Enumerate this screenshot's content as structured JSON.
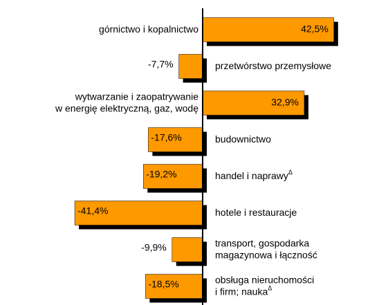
{
  "chart_data": {
    "type": "bar",
    "orientation": "horizontal",
    "categories": [
      [
        "górnictwo i kopalnictwo"
      ],
      [
        "przetwórstwo przemysłowe"
      ],
      [
        "wytwarzanie i zaopatrywanie",
        "w energię elektryczną, gaz, wodę"
      ],
      [
        "budownictwo"
      ],
      [
        "handel i naprawy"
      ],
      [
        "hotele i restauracje"
      ],
      [
        "transport, gospodarka",
        "magazynowa i łączność"
      ],
      [
        "obsługa nieruchomości",
        "i firm; nauka"
      ]
    ],
    "category_notes": [
      null,
      null,
      null,
      null,
      "Δ",
      null,
      null,
      "Δ"
    ],
    "values": [
      42.5,
      -7.7,
      32.9,
      -17.6,
      -19.2,
      -41.4,
      -9.9,
      -18.5
    ],
    "value_labels": [
      "42,5%",
      "-7,7%",
      "32,9%",
      "-17,6%",
      "-19,2%",
      "-41,4%",
      "-9,9%",
      "-18,5%"
    ],
    "color": "#ff9900",
    "shadow_color": "#000000",
    "xlim": [
      -45,
      45
    ]
  }
}
